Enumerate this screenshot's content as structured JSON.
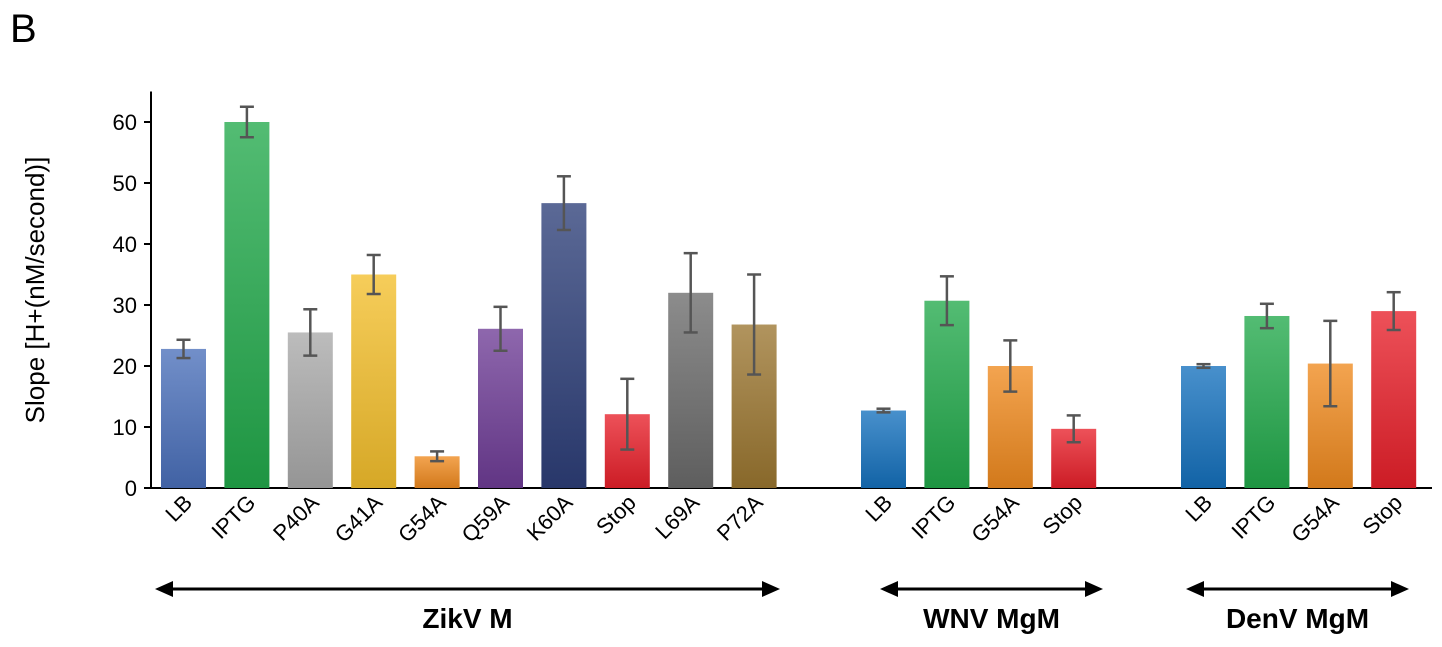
{
  "panel_label": "B",
  "chart_data": {
    "type": "bar",
    "title": "",
    "xlabel": "",
    "ylabel": "Slope [H+(nM/second)]",
    "ylim": [
      0,
      65
    ],
    "yticks": [
      0,
      10,
      20,
      30,
      40,
      50,
      60
    ],
    "grid": false,
    "groups": [
      {
        "name": "ZikV M",
        "bars": [
          {
            "label": "LB",
            "value": 22.8,
            "error": 1.5,
            "color": "#4a6fba"
          },
          {
            "label": "IPTG",
            "value": 60.0,
            "error": 2.5,
            "color": "#22a94b"
          },
          {
            "label": "P40A",
            "value": 25.5,
            "error": 3.8,
            "color": "#a9a9a9"
          },
          {
            "label": "G41A",
            "value": 35.0,
            "error": 3.2,
            "color": "#f3bf2c"
          },
          {
            "label": "G54A",
            "value": 5.2,
            "error": 0.8,
            "color": "#ef8a1f"
          },
          {
            "label": "Q59A",
            "value": 26.1,
            "error": 3.6,
            "color": "#6e3c96"
          },
          {
            "label": "K60A",
            "value": 46.7,
            "error": 4.4,
            "color": "#2d3f78"
          },
          {
            "label": "Stop",
            "value": 12.1,
            "error": 5.8,
            "color": "#e8202a"
          },
          {
            "label": "L69A",
            "value": 32.0,
            "error": 6.5,
            "color": "#6b6b6b"
          },
          {
            "label": "P72A",
            "value": 26.8,
            "error": 8.2,
            "color": "#9b7630"
          }
        ]
      },
      {
        "name": "WNV MgM",
        "bars": [
          {
            "label": "LB",
            "value": 12.7,
            "error": 0.3,
            "color": "#1571bd"
          },
          {
            "label": "IPTG",
            "value": 30.7,
            "error": 4.0,
            "color": "#22a94b"
          },
          {
            "label": "G54A",
            "value": 20.0,
            "error": 4.2,
            "color": "#ef8a1f"
          },
          {
            "label": "Stop",
            "value": 9.7,
            "error": 2.2,
            "color": "#e8202a"
          }
        ]
      },
      {
        "name": "DenV MgM",
        "bars": [
          {
            "label": "LB",
            "value": 20.0,
            "error": 0.3,
            "color": "#1571bd"
          },
          {
            "label": "IPTG",
            "value": 28.2,
            "error": 2.0,
            "color": "#22a94b"
          },
          {
            "label": "G54A",
            "value": 20.4,
            "error": 7.0,
            "color": "#ef8a1f"
          },
          {
            "label": "Stop",
            "value": 29.0,
            "error": 3.1,
            "color": "#e8202a"
          }
        ]
      }
    ]
  }
}
